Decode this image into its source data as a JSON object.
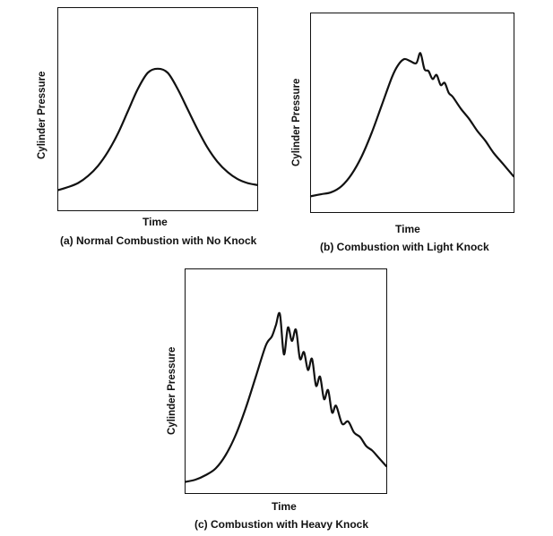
{
  "chart_data": [
    {
      "type": "line",
      "caption": "(a) Normal Combustion with No Knock",
      "xlabel": "Time",
      "ylabel": "Cylinder Pressure",
      "series": [
        {
          "x": [
            0,
            0.05,
            0.1,
            0.15,
            0.2,
            0.25,
            0.3,
            0.35,
            0.4,
            0.45,
            0.5,
            0.55,
            0.6,
            0.65,
            0.7,
            0.75,
            0.8,
            0.85,
            0.9,
            0.95,
            1.0
          ],
          "values": [
            0.1,
            0.115,
            0.135,
            0.17,
            0.22,
            0.29,
            0.38,
            0.49,
            0.6,
            0.68,
            0.7,
            0.68,
            0.6,
            0.5,
            0.4,
            0.31,
            0.24,
            0.19,
            0.155,
            0.135,
            0.125
          ]
        }
      ],
      "xlim": [
        0,
        1
      ],
      "ylim": [
        0,
        1
      ]
    },
    {
      "type": "line",
      "caption": "(b) Combustion with Light Knock",
      "xlabel": "Time",
      "ylabel": "Cylinder Pressure",
      "series": [
        {
          "x": [
            0,
            0.05,
            0.1,
            0.15,
            0.2,
            0.25,
            0.3,
            0.35,
            0.4,
            0.43,
            0.46,
            0.49,
            0.52,
            0.54,
            0.56,
            0.58,
            0.6,
            0.62,
            0.64,
            0.66,
            0.68,
            0.7,
            0.74,
            0.78,
            0.82,
            0.86,
            0.9,
            0.95,
            1.0
          ],
          "values": [
            0.08,
            0.09,
            0.1,
            0.13,
            0.19,
            0.28,
            0.4,
            0.54,
            0.68,
            0.74,
            0.77,
            0.76,
            0.75,
            0.8,
            0.72,
            0.71,
            0.67,
            0.69,
            0.64,
            0.65,
            0.6,
            0.58,
            0.52,
            0.47,
            0.41,
            0.36,
            0.3,
            0.24,
            0.18
          ]
        }
      ],
      "xlim": [
        0,
        1
      ],
      "ylim": [
        0,
        1
      ]
    },
    {
      "type": "line",
      "caption": "(c) Combustion with Heavy Knock",
      "xlabel": "Time",
      "ylabel": "Cylinder Pressure",
      "series": [
        {
          "x": [
            0,
            0.05,
            0.1,
            0.15,
            0.2,
            0.25,
            0.3,
            0.35,
            0.4,
            0.43,
            0.45,
            0.47,
            0.49,
            0.51,
            0.53,
            0.55,
            0.57,
            0.59,
            0.61,
            0.63,
            0.65,
            0.67,
            0.69,
            0.71,
            0.73,
            0.75,
            0.78,
            0.81,
            0.84,
            0.87,
            0.9,
            0.93,
            0.96,
            1.0
          ],
          "values": [
            0.05,
            0.06,
            0.08,
            0.11,
            0.17,
            0.26,
            0.38,
            0.52,
            0.66,
            0.7,
            0.75,
            0.8,
            0.62,
            0.74,
            0.68,
            0.73,
            0.6,
            0.63,
            0.55,
            0.6,
            0.48,
            0.52,
            0.42,
            0.46,
            0.36,
            0.39,
            0.31,
            0.32,
            0.27,
            0.25,
            0.21,
            0.19,
            0.16,
            0.12
          ]
        }
      ],
      "xlim": [
        0,
        1
      ],
      "ylim": [
        0,
        1
      ]
    }
  ],
  "style": {
    "line_color": "#111111",
    "frame_color": "#111111"
  }
}
